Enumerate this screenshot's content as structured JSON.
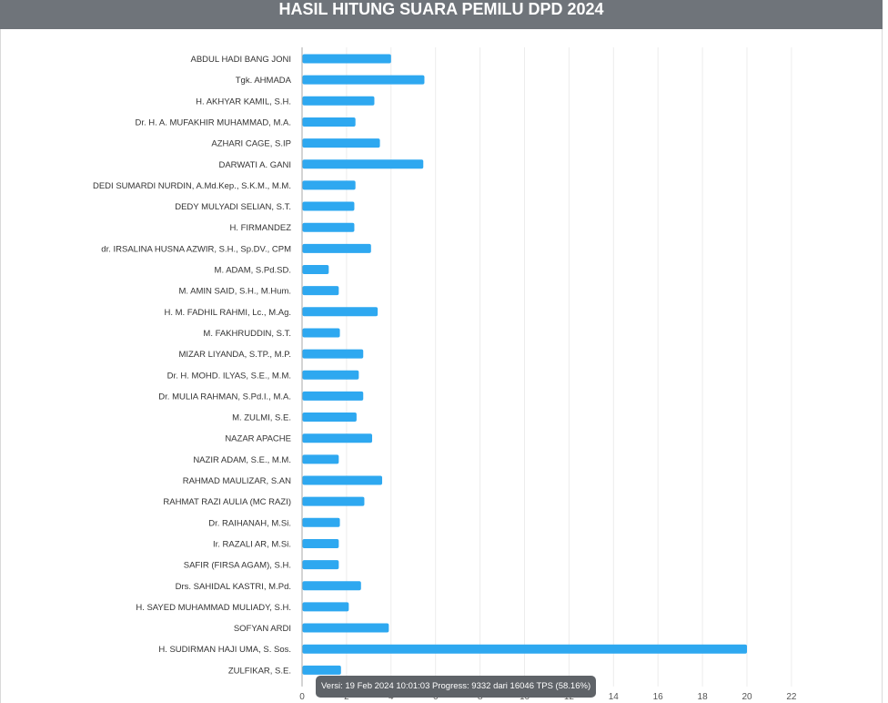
{
  "header": {
    "title": "HASIL HITUNG SUARA PEMILU DPD 2024"
  },
  "tooltip": {
    "version": "Versi: 19 Feb 2024 10:01:03",
    "progress": "Progress: 9332 dari 16046 TPS (58.16%)"
  },
  "chart_data": {
    "type": "bar",
    "orientation": "horizontal",
    "title": "HASIL HITUNG SUARA PEMILU DPD 2024",
    "bar_color": "#2ea8f0",
    "grid": true,
    "xlim": [
      0,
      22
    ],
    "x_ticks": [
      "0",
      "2",
      "4",
      "6",
      "8",
      "10",
      "12",
      "14",
      "16",
      "18",
      "20",
      "22"
    ],
    "categories": [
      "ABDUL HADI BANG JONI",
      "Tgk. AHMADA",
      "H. AKHYAR KAMIL, S.H.",
      "Dr. H. A. MUFAKHIR MUHAMMAD, M.A.",
      "AZHARI CAGE, S.IP",
      "DARWATI A. GANI",
      "DEDI SUMARDI NURDIN, A.Md.Kep., S.K.M., M.M.",
      "DEDY MULYADI SELIAN, S.T.",
      "H. FIRMANDEZ",
      "dr. IRSALINA HUSNA AZWIR, S.H., Sp.DV., CPM",
      "M. ADAM, S.Pd.SD.",
      "M. AMIN SAID, S.H., M.Hum.",
      "H. M. FADHIL RAHMI, Lc., M.Ag.",
      "M. FAKHRUDDIN, S.T.",
      "MIZAR LIYANDA, S.TP., M.P.",
      "Dr. H. MOHD. ILYAS, S.E., M.M.",
      "Dr. MULIA RAHMAN, S.Pd.I., M.A.",
      "M. ZULMI, S.E.",
      "NAZAR APACHE",
      "NAZIR ADAM, S.E., M.M.",
      "RAHMAD MAULIZAR, S.AN",
      "RAHMAT RAZI AULIA (MC RAZI)",
      "Dr. RAIHANAH, M.Si.",
      "Ir. RAZALI AR, M.Si.",
      "SAFIR (FIRSA AGAM), S.H.",
      "Drs. SAHIDAL KASTRI, M.Pd.",
      "H. SAYED MUHAMMAD MULIADY, S.H.",
      "SOFYAN ARDI",
      "H. SUDIRMAN HAJI UMA, S. Sos.",
      "ZULFIKAR, S.E."
    ],
    "values": [
      4.0,
      5.5,
      3.25,
      2.4,
      3.5,
      5.45,
      2.4,
      2.35,
      2.35,
      3.1,
      1.2,
      1.65,
      3.4,
      1.7,
      2.75,
      2.55,
      2.75,
      2.45,
      3.15,
      1.65,
      3.6,
      2.8,
      1.7,
      1.65,
      1.65,
      2.65,
      2.1,
      3.9,
      20.0,
      1.75
    ]
  }
}
